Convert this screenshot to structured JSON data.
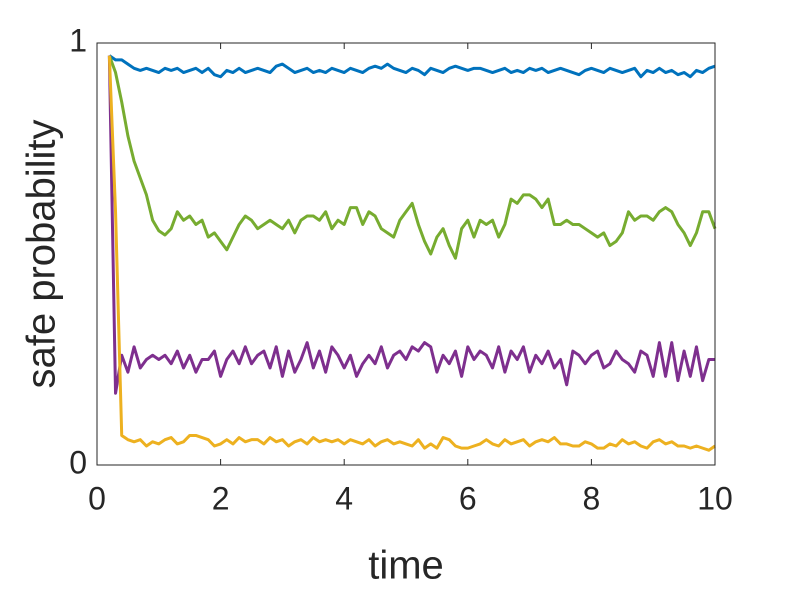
{
  "chart_data": {
    "type": "line",
    "xlabel": "time",
    "ylabel": "safe probability",
    "xlim": [
      0,
      10
    ],
    "ylim": [
      0,
      1
    ],
    "xticks": [
      0,
      2,
      4,
      6,
      8,
      10
    ],
    "yticks": [
      0,
      1
    ],
    "x": [
      0.2,
      0.3,
      0.4,
      0.5,
      0.6,
      0.7,
      0.8,
      0.9,
      1.0,
      1.1,
      1.2,
      1.3,
      1.4,
      1.5,
      1.6,
      1.7,
      1.8,
      1.9,
      2.0,
      2.1,
      2.2,
      2.3,
      2.4,
      2.5,
      2.6,
      2.7,
      2.8,
      2.9,
      3.0,
      3.1,
      3.2,
      3.3,
      3.4,
      3.5,
      3.6,
      3.7,
      3.8,
      3.9,
      4.0,
      4.1,
      4.2,
      4.3,
      4.4,
      4.5,
      4.6,
      4.7,
      4.8,
      4.9,
      5.0,
      5.1,
      5.2,
      5.3,
      5.4,
      5.5,
      5.6,
      5.7,
      5.8,
      5.9,
      6.0,
      6.1,
      6.2,
      6.3,
      6.4,
      6.5,
      6.6,
      6.7,
      6.8,
      6.9,
      7.0,
      7.1,
      7.2,
      7.3,
      7.4,
      7.5,
      7.6,
      7.7,
      7.8,
      7.9,
      8.0,
      8.1,
      8.2,
      8.3,
      8.4,
      8.5,
      8.6,
      8.7,
      8.8,
      8.9,
      9.0,
      9.1,
      9.2,
      9.3,
      9.4,
      9.5,
      9.6,
      9.7,
      9.8,
      9.9,
      10.0
    ],
    "series": [
      {
        "color": "#0072BD",
        "values": [
          0.97,
          0.96,
          0.96,
          0.95,
          0.94,
          0.935,
          0.94,
          0.935,
          0.93,
          0.94,
          0.935,
          0.94,
          0.93,
          0.935,
          0.94,
          0.93,
          0.94,
          0.925,
          0.92,
          0.935,
          0.93,
          0.94,
          0.93,
          0.935,
          0.94,
          0.935,
          0.93,
          0.945,
          0.95,
          0.94,
          0.93,
          0.935,
          0.94,
          0.93,
          0.935,
          0.93,
          0.94,
          0.935,
          0.93,
          0.94,
          0.935,
          0.93,
          0.94,
          0.945,
          0.94,
          0.95,
          0.94,
          0.935,
          0.93,
          0.94,
          0.935,
          0.925,
          0.94,
          0.935,
          0.93,
          0.94,
          0.945,
          0.94,
          0.935,
          0.94,
          0.94,
          0.935,
          0.93,
          0.935,
          0.94,
          0.93,
          0.935,
          0.93,
          0.94,
          0.935,
          0.94,
          0.93,
          0.935,
          0.94,
          0.935,
          0.93,
          0.925,
          0.935,
          0.94,
          0.935,
          0.93,
          0.94,
          0.935,
          0.93,
          0.935,
          0.94,
          0.92,
          0.935,
          0.93,
          0.94,
          0.93,
          0.935,
          0.925,
          0.93,
          0.92,
          0.935,
          0.93,
          0.94,
          0.945
        ]
      },
      {
        "color": "#77AC30",
        "values": [
          0.97,
          0.93,
          0.86,
          0.78,
          0.72,
          0.68,
          0.64,
          0.58,
          0.555,
          0.545,
          0.56,
          0.6,
          0.58,
          0.59,
          0.57,
          0.58,
          0.54,
          0.55,
          0.53,
          0.51,
          0.54,
          0.57,
          0.59,
          0.58,
          0.56,
          0.57,
          0.58,
          0.57,
          0.56,
          0.58,
          0.55,
          0.58,
          0.59,
          0.59,
          0.58,
          0.6,
          0.56,
          0.58,
          0.57,
          0.61,
          0.61,
          0.57,
          0.6,
          0.59,
          0.56,
          0.55,
          0.54,
          0.58,
          0.6,
          0.62,
          0.57,
          0.53,
          0.5,
          0.54,
          0.56,
          0.52,
          0.49,
          0.56,
          0.58,
          0.54,
          0.58,
          0.57,
          0.58,
          0.54,
          0.57,
          0.63,
          0.62,
          0.64,
          0.64,
          0.63,
          0.61,
          0.63,
          0.57,
          0.57,
          0.58,
          0.57,
          0.57,
          0.56,
          0.55,
          0.54,
          0.55,
          0.52,
          0.53,
          0.55,
          0.6,
          0.58,
          0.59,
          0.59,
          0.58,
          0.6,
          0.61,
          0.6,
          0.57,
          0.55,
          0.52,
          0.55,
          0.6,
          0.6,
          0.56
        ]
      },
      {
        "color": "#7E2F8E",
        "values": [
          0.97,
          0.17,
          0.26,
          0.22,
          0.28,
          0.23,
          0.25,
          0.26,
          0.25,
          0.26,
          0.24,
          0.27,
          0.23,
          0.26,
          0.22,
          0.25,
          0.25,
          0.27,
          0.21,
          0.25,
          0.27,
          0.24,
          0.28,
          0.24,
          0.26,
          0.27,
          0.23,
          0.28,
          0.21,
          0.27,
          0.22,
          0.25,
          0.29,
          0.23,
          0.27,
          0.22,
          0.28,
          0.26,
          0.23,
          0.26,
          0.21,
          0.24,
          0.26,
          0.24,
          0.28,
          0.23,
          0.26,
          0.27,
          0.25,
          0.28,
          0.27,
          0.29,
          0.28,
          0.22,
          0.26,
          0.24,
          0.27,
          0.21,
          0.28,
          0.25,
          0.27,
          0.26,
          0.23,
          0.28,
          0.22,
          0.27,
          0.25,
          0.28,
          0.22,
          0.26,
          0.24,
          0.27,
          0.23,
          0.25,
          0.19,
          0.27,
          0.26,
          0.24,
          0.26,
          0.27,
          0.23,
          0.24,
          0.27,
          0.25,
          0.24,
          0.22,
          0.27,
          0.26,
          0.21,
          0.29,
          0.21,
          0.29,
          0.2,
          0.27,
          0.21,
          0.28,
          0.2,
          0.25,
          0.25
        ]
      },
      {
        "color": "#EDB120",
        "values": [
          0.97,
          0.6,
          0.07,
          0.06,
          0.055,
          0.06,
          0.045,
          0.055,
          0.05,
          0.06,
          0.065,
          0.05,
          0.055,
          0.07,
          0.07,
          0.065,
          0.06,
          0.045,
          0.05,
          0.06,
          0.05,
          0.065,
          0.055,
          0.06,
          0.06,
          0.05,
          0.065,
          0.055,
          0.06,
          0.045,
          0.055,
          0.06,
          0.05,
          0.065,
          0.055,
          0.06,
          0.055,
          0.06,
          0.05,
          0.06,
          0.055,
          0.05,
          0.06,
          0.045,
          0.055,
          0.06,
          0.05,
          0.055,
          0.05,
          0.045,
          0.06,
          0.04,
          0.05,
          0.04,
          0.065,
          0.06,
          0.045,
          0.04,
          0.04,
          0.045,
          0.05,
          0.06,
          0.05,
          0.045,
          0.06,
          0.05,
          0.055,
          0.06,
          0.045,
          0.055,
          0.06,
          0.055,
          0.065,
          0.05,
          0.05,
          0.045,
          0.045,
          0.055,
          0.05,
          0.04,
          0.04,
          0.05,
          0.045,
          0.06,
          0.05,
          0.055,
          0.045,
          0.04,
          0.055,
          0.06,
          0.05,
          0.055,
          0.045,
          0.045,
          0.04,
          0.045,
          0.04,
          0.035,
          0.045
        ]
      }
    ]
  }
}
